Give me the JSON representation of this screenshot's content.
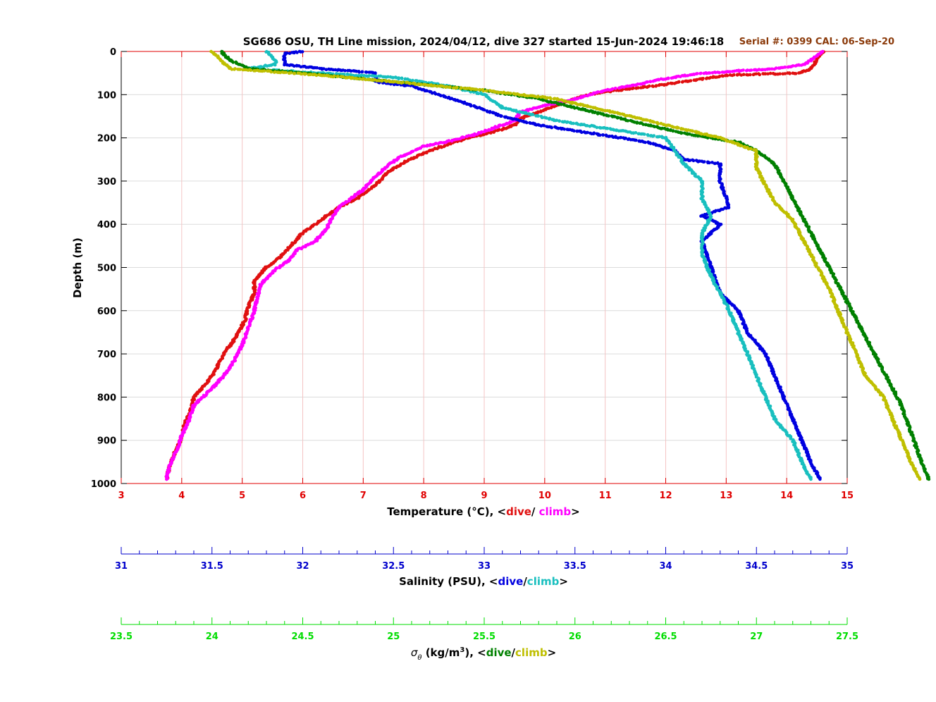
{
  "title": "SG686 OSU, TH Line mission, 2024/04/12, dive 327 started 15-Jun-2024 19:46:18",
  "serial_text": "Serial #: 0399  CAL: 06-Sep-20",
  "colors": {
    "temp_axis": "#e00000",
    "temp_dive": "#e01010",
    "temp_climb": "#ff00ff",
    "sal_axis": "#0000cc",
    "sal_dive": "#0000e0",
    "sal_climb": "#19bfbf",
    "sig_axis": "#00dd00",
    "sig_dive": "#008000",
    "sig_climb": "#bfbf00",
    "serial": "#8b3a0a"
  },
  "axes": {
    "depth": {
      "label": "Depth (m)",
      "ticks": [
        "0",
        "100",
        "200",
        "300",
        "400",
        "500",
        "600",
        "700",
        "800",
        "900",
        "1000"
      ],
      "range": [
        0,
        1000
      ],
      "reversed": true
    },
    "temperature": {
      "label_prefix": "Temperature (°C), <",
      "label_dive": "dive",
      "label_sep": "/ ",
      "label_climb": "climb",
      "label_suffix": ">",
      "ticks": [
        "3",
        "4",
        "5",
        "6",
        "7",
        "8",
        "9",
        "10",
        "11",
        "12",
        "13",
        "14",
        "15"
      ],
      "range": [
        3,
        15
      ]
    },
    "salinity": {
      "label_prefix": "Salinity (PSU), <",
      "label_dive": "dive",
      "label_sep": "/",
      "label_climb": "climb",
      "label_suffix": ">",
      "ticks": [
        "31",
        "31.5",
        "32",
        "32.5",
        "33",
        "33.5",
        "34",
        "34.5",
        "35"
      ],
      "range": [
        31,
        35
      ]
    },
    "sigma": {
      "label_symbol": "σ",
      "label_sub": "θ",
      "label_units": " (kg/m",
      "label_sup": "3",
      "label_prefix": "), <",
      "label_dive": "dive",
      "label_sep": "/",
      "label_climb": "climb",
      "label_suffix": ">",
      "ticks": [
        "23.5",
        "24",
        "24.5",
        "25",
        "25.5",
        "26",
        "26.5",
        "27",
        "27.5"
      ],
      "range": [
        23.5,
        27.5
      ]
    }
  },
  "chart_data": {
    "type": "scatter",
    "grid": true,
    "y_axis": "depth",
    "series": [
      {
        "name": "dive",
        "variable": "temperature",
        "color": "#e01010",
        "points": [
          [
            14.6,
            0
          ],
          [
            14.4,
            40
          ],
          [
            14.2,
            50
          ],
          [
            13.0,
            55
          ],
          [
            12.4,
            68
          ],
          [
            11.8,
            80
          ],
          [
            11.2,
            90
          ],
          [
            10.7,
            100
          ],
          [
            10.3,
            120
          ],
          [
            9.9,
            140
          ],
          [
            9.6,
            155
          ],
          [
            9.5,
            170
          ],
          [
            9.3,
            180
          ],
          [
            8.9,
            195
          ],
          [
            8.5,
            210
          ],
          [
            8.1,
            230
          ],
          [
            7.7,
            255
          ],
          [
            7.4,
            280
          ],
          [
            7.2,
            310
          ],
          [
            6.9,
            340
          ],
          [
            6.6,
            360
          ],
          [
            6.4,
            380
          ],
          [
            6.2,
            400
          ],
          [
            6.0,
            420
          ],
          [
            5.8,
            450
          ],
          [
            5.6,
            480
          ],
          [
            5.4,
            500
          ],
          [
            5.2,
            530
          ],
          [
            5.2,
            560
          ],
          [
            5.1,
            590
          ],
          [
            5.05,
            620
          ],
          [
            4.9,
            660
          ],
          [
            4.7,
            700
          ],
          [
            4.55,
            740
          ],
          [
            4.4,
            770
          ],
          [
            4.2,
            800
          ],
          [
            4.15,
            830
          ],
          [
            4.05,
            860
          ],
          [
            4.0,
            890
          ],
          [
            3.95,
            910
          ],
          [
            3.85,
            940
          ],
          [
            3.8,
            960
          ],
          [
            3.75,
            990
          ]
        ]
      },
      {
        "name": "climb",
        "variable": "temperature",
        "color": "#ff00ff",
        "points": [
          [
            14.6,
            0
          ],
          [
            14.3,
            30
          ],
          [
            13.8,
            40
          ],
          [
            13.2,
            45
          ],
          [
            12.5,
            52
          ],
          [
            11.9,
            65
          ],
          [
            11.5,
            78
          ],
          [
            11.0,
            90
          ],
          [
            10.5,
            110
          ],
          [
            10.0,
            125
          ],
          [
            9.6,
            140
          ],
          [
            9.5,
            160
          ],
          [
            9.2,
            175
          ],
          [
            8.9,
            190
          ],
          [
            8.5,
            205
          ],
          [
            8.0,
            220
          ],
          [
            7.6,
            245
          ],
          [
            7.4,
            265
          ],
          [
            7.2,
            290
          ],
          [
            7.0,
            320
          ],
          [
            6.8,
            340
          ],
          [
            6.6,
            360
          ],
          [
            6.5,
            380
          ],
          [
            6.4,
            410
          ],
          [
            6.2,
            440
          ],
          [
            5.9,
            460
          ],
          [
            5.8,
            480
          ],
          [
            5.5,
            510
          ],
          [
            5.3,
            540
          ],
          [
            5.25,
            570
          ],
          [
            5.2,
            600
          ],
          [
            5.1,
            640
          ],
          [
            5.0,
            680
          ],
          [
            4.85,
            720
          ],
          [
            4.7,
            750
          ],
          [
            4.5,
            780
          ],
          [
            4.2,
            820
          ],
          [
            4.1,
            860
          ],
          [
            4.0,
            890
          ],
          [
            3.9,
            930
          ],
          [
            3.8,
            960
          ],
          [
            3.75,
            990
          ]
        ]
      },
      {
        "name": "dive",
        "variable": "salinity",
        "color": "#0000e0",
        "points": [
          [
            32.0,
            0
          ],
          [
            31.9,
            5
          ],
          [
            31.9,
            30
          ],
          [
            32.1,
            40
          ],
          [
            32.4,
            50
          ],
          [
            32.4,
            70
          ],
          [
            32.6,
            80
          ],
          [
            32.75,
            100
          ],
          [
            32.9,
            120
          ],
          [
            33.1,
            150
          ],
          [
            33.3,
            170
          ],
          [
            33.6,
            190
          ],
          [
            33.9,
            210
          ],
          [
            34.05,
            230
          ],
          [
            34.1,
            250
          ],
          [
            34.3,
            260
          ],
          [
            34.3,
            300
          ],
          [
            34.35,
            360
          ],
          [
            34.2,
            380
          ],
          [
            34.3,
            400
          ],
          [
            34.2,
            440
          ],
          [
            34.25,
            500
          ],
          [
            34.3,
            560
          ],
          [
            34.4,
            600
          ],
          [
            34.45,
            650
          ],
          [
            34.55,
            700
          ],
          [
            34.6,
            750
          ],
          [
            34.65,
            800
          ],
          [
            34.7,
            850
          ],
          [
            34.75,
            900
          ],
          [
            34.8,
            950
          ],
          [
            34.85,
            990
          ]
        ]
      },
      {
        "name": "climb",
        "variable": "salinity",
        "color": "#19bfbf",
        "points": [
          [
            31.8,
            0
          ],
          [
            31.85,
            20
          ],
          [
            31.85,
            30
          ],
          [
            31.7,
            40
          ],
          [
            32.5,
            60
          ],
          [
            32.8,
            80
          ],
          [
            33.0,
            100
          ],
          [
            33.1,
            130
          ],
          [
            33.4,
            160
          ],
          [
            33.7,
            180
          ],
          [
            34.0,
            200
          ],
          [
            34.05,
            230
          ],
          [
            34.1,
            260
          ],
          [
            34.2,
            300
          ],
          [
            34.2,
            340
          ],
          [
            34.25,
            380
          ],
          [
            34.2,
            420
          ],
          [
            34.2,
            470
          ],
          [
            34.25,
            520
          ],
          [
            34.3,
            560
          ],
          [
            34.35,
            600
          ],
          [
            34.4,
            650
          ],
          [
            34.45,
            700
          ],
          [
            34.5,
            750
          ],
          [
            34.55,
            800
          ],
          [
            34.6,
            850
          ],
          [
            34.7,
            900
          ],
          [
            34.75,
            950
          ],
          [
            34.8,
            990
          ]
        ]
      },
      {
        "name": "dive",
        "variable": "sigma",
        "color": "#008000",
        "points": [
          [
            24.05,
            0
          ],
          [
            24.1,
            20
          ],
          [
            24.2,
            40
          ],
          [
            24.5,
            50
          ],
          [
            25.0,
            70
          ],
          [
            25.5,
            90
          ],
          [
            25.8,
            110
          ],
          [
            26.1,
            140
          ],
          [
            26.4,
            170
          ],
          [
            26.6,
            190
          ],
          [
            26.9,
            210
          ],
          [
            27.0,
            230
          ],
          [
            27.1,
            260
          ],
          [
            27.15,
            300
          ],
          [
            27.2,
            340
          ],
          [
            27.25,
            380
          ],
          [
            27.3,
            420
          ],
          [
            27.35,
            460
          ],
          [
            27.4,
            500
          ],
          [
            27.45,
            540
          ],
          [
            27.5,
            580
          ],
          [
            27.55,
            620
          ],
          [
            27.6,
            660
          ],
          [
            27.65,
            700
          ],
          [
            27.7,
            740
          ],
          [
            27.75,
            780
          ],
          [
            27.8,
            820
          ],
          [
            27.85,
            880
          ],
          [
            27.9,
            940
          ],
          [
            27.95,
            990
          ]
        ]
      },
      {
        "name": "climb",
        "variable": "sigma",
        "color": "#bfbf00",
        "points": [
          [
            24.0,
            0
          ],
          [
            24.05,
            20
          ],
          [
            24.1,
            40
          ],
          [
            24.6,
            55
          ],
          [
            25.0,
            70
          ],
          [
            25.5,
            90
          ],
          [
            25.9,
            110
          ],
          [
            26.2,
            140
          ],
          [
            26.5,
            170
          ],
          [
            26.8,
            200
          ],
          [
            27.0,
            230
          ],
          [
            27.0,
            270
          ],
          [
            27.05,
            310
          ],
          [
            27.1,
            350
          ],
          [
            27.2,
            390
          ],
          [
            27.25,
            430
          ],
          [
            27.3,
            470
          ],
          [
            27.35,
            510
          ],
          [
            27.4,
            550
          ],
          [
            27.45,
            600
          ],
          [
            27.5,
            650
          ],
          [
            27.55,
            700
          ],
          [
            27.6,
            750
          ],
          [
            27.7,
            800
          ],
          [
            27.75,
            850
          ],
          [
            27.8,
            900
          ],
          [
            27.85,
            950
          ],
          [
            27.9,
            990
          ]
        ]
      }
    ]
  }
}
